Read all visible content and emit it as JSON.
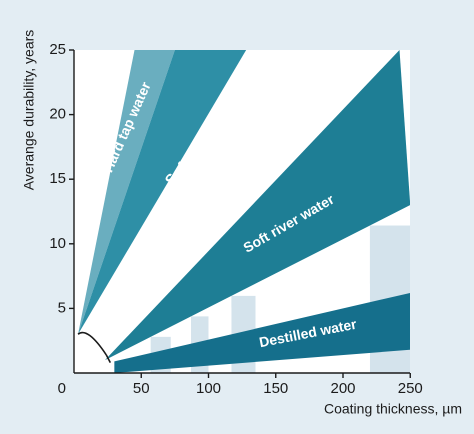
{
  "chart_data": {
    "type": "area",
    "xlabel": "Coating thickness, µm",
    "ylabel": "Averange durability, years",
    "xlim": [
      0,
      250
    ],
    "ylim": [
      0,
      25
    ],
    "x_ticks": [
      "0",
      "50",
      "100",
      "150",
      "200",
      "250"
    ],
    "y_ticks": [
      "5",
      "10",
      "15",
      "20",
      "25"
    ],
    "grid": false,
    "colors": {
      "hard_tap_water": "#6aaebf",
      "soft_tap_water": "#2e8fa6",
      "soft_river_water": "#1e7e95",
      "destilled_water": "#156f8c",
      "light_band": "#d4e3ec",
      "white_band": "#ffffff",
      "background": "#e3edf3",
      "plot_background": "#ffffff",
      "axis": "#1b1b1b"
    },
    "series": [
      {
        "name": "Hard tap water",
        "lower": [
          [
            3,
            3
          ],
          [
            75,
            25
          ]
        ],
        "upper": [
          [
            3,
            3
          ],
          [
            45,
            25
          ]
        ]
      },
      {
        "name": "Soft tap water",
        "lower": [
          [
            3,
            3
          ],
          [
            128,
            25
          ]
        ],
        "upper": [
          [
            3,
            3
          ],
          [
            75,
            25
          ]
        ]
      },
      {
        "name": "Soft river water",
        "lower": [
          [
            23,
            1
          ],
          [
            250,
            13
          ]
        ],
        "upper": [
          [
            23,
            1
          ],
          [
            242,
            25
          ]
        ]
      },
      {
        "name": "Destilled water",
        "lower": [
          [
            30,
            0
          ],
          [
            250,
            1.8
          ]
        ],
        "upper": [
          [
            30,
            0.9
          ],
          [
            250,
            6.2
          ]
        ]
      }
    ],
    "annotations": [
      {
        "text": "Hard tap water",
        "x": 40,
        "y": 19.0,
        "angle": -66
      },
      {
        "text": "Soft tap water",
        "x": 95,
        "y": 17.5,
        "angle": -48
      },
      {
        "text": "Soft river water",
        "x": 160,
        "y": 11.5,
        "angle": -30
      },
      {
        "text": "Destilled water",
        "x": 174,
        "y": 3.0,
        "angle": -11
      }
    ],
    "light_bands": [
      [
        57,
        72
      ],
      [
        87,
        100
      ],
      [
        117,
        135
      ],
      [
        220,
        250
      ]
    ],
    "white_bands": [
      [
        72,
        87
      ],
      [
        100,
        117
      ],
      [
        135,
        220
      ]
    ]
  }
}
